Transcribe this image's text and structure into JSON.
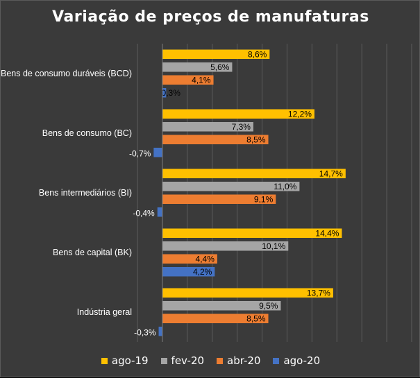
{
  "chart_data": {
    "type": "bar",
    "orientation": "horizontal",
    "title": "Variação de preços de manufaturas",
    "categories": [
      "Bens de consumo duráveis (BCD)",
      "Bens de consumo (BC)",
      "Bens intermediários (BI)",
      "Bens de capital (BK)",
      "Indústria geral"
    ],
    "series": [
      {
        "name": "ago-19",
        "color": "#ffc000",
        "values": [
          8.6,
          12.2,
          14.7,
          14.4,
          13.7
        ],
        "labels": [
          "8,6%",
          "12,2%",
          "14,7%",
          "14,4%",
          "13,7%"
        ]
      },
      {
        "name": "fev-20",
        "color": "#a5a5a5",
        "values": [
          5.6,
          7.3,
          11.0,
          10.1,
          9.5
        ],
        "labels": [
          "5,6%",
          "7,3%",
          "11,0%",
          "10,1%",
          "9,5%"
        ]
      },
      {
        "name": "abr-20",
        "color": "#ed7d31",
        "values": [
          4.1,
          8.5,
          9.1,
          4.4,
          8.5
        ],
        "labels": [
          "4,1%",
          "8,5%",
          "9,1%",
          "4,4%",
          "8,5%"
        ]
      },
      {
        "name": "ago-20",
        "color": "#4472c4",
        "values": [
          0.3,
          -0.7,
          -0.4,
          4.2,
          -0.3
        ],
        "labels": [
          "0,3%",
          "-0,7%",
          "-0,4%",
          "4,2%",
          "-0,3%"
        ]
      }
    ],
    "xlim": [
      -2,
      20
    ],
    "grid": true,
    "legend": "bottom"
  }
}
